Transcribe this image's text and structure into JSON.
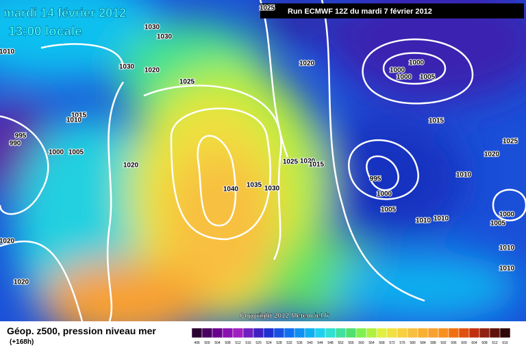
{
  "header": {
    "date": "mardi 14 février 2012",
    "time": "13:00 locale",
    "run": "Run ECMWF 12Z du mardi 7 février 2012"
  },
  "isobars": [
    "1025",
    "1030",
    "1030",
    "1010",
    "1030",
    "1020",
    "1020",
    "1000",
    "1000",
    "1000",
    "1005",
    "1025",
    "1015",
    "1010",
    "1015",
    "995",
    "990",
    "1025",
    "1000",
    "1005",
    "1020",
    "1020",
    "1025",
    "1020",
    "1015",
    "995",
    "1010",
    "1040",
    "1035",
    "1030",
    "1000",
    "1005",
    "1000",
    "1010",
    "1010",
    "1005",
    "1020",
    "1010",
    "1010",
    "1020"
  ],
  "copyright": "Copyright 2012 Meteociel.fr",
  "footer": {
    "title": "Géop. z500, pression niveau mer",
    "subtitle": "(+168h)"
  },
  "legend": {
    "labels": [
      "496",
      "500",
      "504",
      "508",
      "512",
      "516",
      "520",
      "524",
      "528",
      "532",
      "536",
      "540",
      "544",
      "548",
      "552",
      "556",
      "560",
      "564",
      "568",
      "572",
      "576",
      "580",
      "584",
      "588",
      "592",
      "596",
      "600",
      "604",
      "608",
      "612",
      "616"
    ],
    "colors": [
      "#2a0030",
      "#4a0060",
      "#6a0090",
      "#8a10b0",
      "#a020c0",
      "#7020c0",
      "#4020c0",
      "#2030d0",
      "#1850e0",
      "#1070f0",
      "#1090f0",
      "#10b0f0",
      "#20d0f0",
      "#30e0d0",
      "#40e0a0",
      "#50e070",
      "#80f050",
      "#b0f040",
      "#e0f040",
      "#f0e040",
      "#f8d040",
      "#f8c040",
      "#f8b030",
      "#f8a030",
      "#f89020",
      "#f07010",
      "#e05010",
      "#c03010",
      "#902010",
      "#601008",
      "#300808"
    ]
  }
}
